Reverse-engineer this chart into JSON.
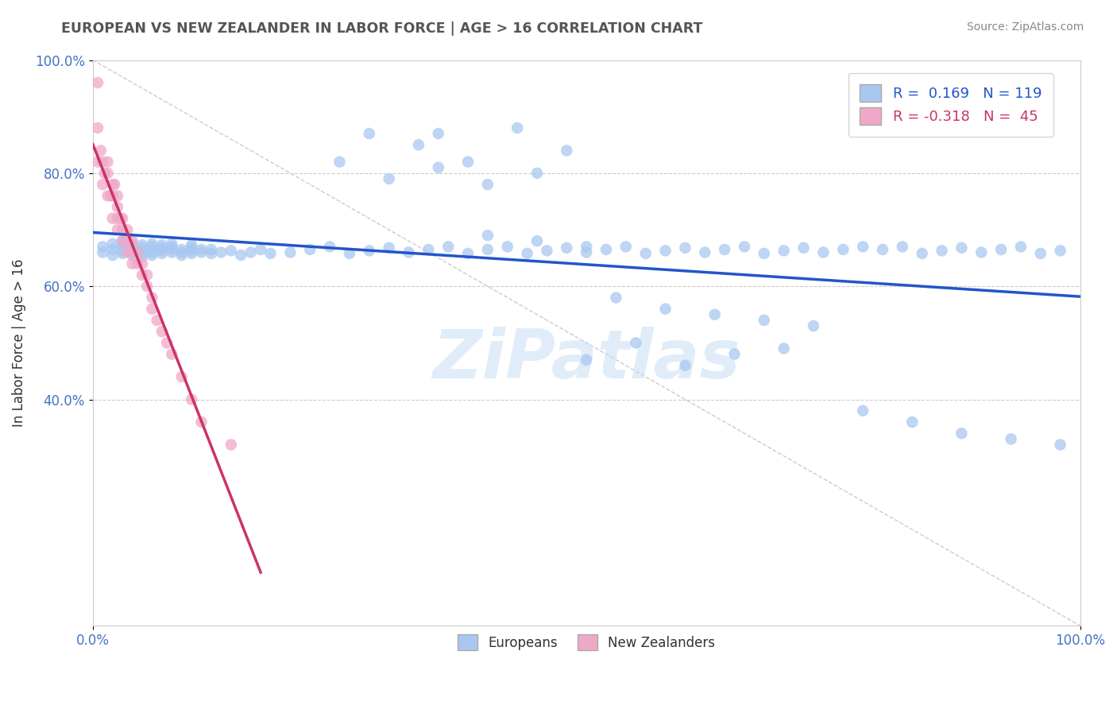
{
  "title": "EUROPEAN VS NEW ZEALANDER IN LABOR FORCE | AGE > 16 CORRELATION CHART",
  "source": "Source: ZipAtlas.com",
  "ylabel": "In Labor Force | Age > 16",
  "R_blue": 0.169,
  "N_blue": 119,
  "R_pink": -0.318,
  "N_pink": 45,
  "blue_color": "#a8c8f0",
  "pink_color": "#f0a8c8",
  "blue_line_color": "#2255cc",
  "pink_line_color": "#cc3366",
  "legend_blue_label": "Europeans",
  "legend_pink_label": "New Zealanders",
  "blue_scatter_x": [
    0.01,
    0.01,
    0.02,
    0.02,
    0.02,
    0.03,
    0.03,
    0.03,
    0.03,
    0.03,
    0.04,
    0.04,
    0.04,
    0.04,
    0.04,
    0.05,
    0.05,
    0.05,
    0.05,
    0.05,
    0.06,
    0.06,
    0.06,
    0.06,
    0.06,
    0.07,
    0.07,
    0.07,
    0.07,
    0.08,
    0.08,
    0.08,
    0.08,
    0.09,
    0.09,
    0.09,
    0.1,
    0.1,
    0.1,
    0.1,
    0.11,
    0.11,
    0.12,
    0.12,
    0.13,
    0.14,
    0.15,
    0.16,
    0.17,
    0.18,
    0.2,
    0.22,
    0.24,
    0.26,
    0.28,
    0.3,
    0.32,
    0.34,
    0.36,
    0.38,
    0.4,
    0.42,
    0.44,
    0.46,
    0.48,
    0.5,
    0.52,
    0.54,
    0.56,
    0.58,
    0.6,
    0.62,
    0.64,
    0.66,
    0.68,
    0.7,
    0.72,
    0.74,
    0.76,
    0.78,
    0.8,
    0.82,
    0.84,
    0.86,
    0.88,
    0.9,
    0.92,
    0.94,
    0.96,
    0.98,
    0.25,
    0.3,
    0.35,
    0.4,
    0.45,
    0.5,
    0.55,
    0.6,
    0.65,
    0.7,
    0.28,
    0.33,
    0.38,
    0.43,
    0.48,
    0.53,
    0.58,
    0.63,
    0.68,
    0.73,
    0.78,
    0.83,
    0.88,
    0.93,
    0.98,
    0.35,
    0.4,
    0.45,
    0.5
  ],
  "blue_scatter_y": [
    0.66,
    0.67,
    0.655,
    0.665,
    0.675,
    0.658,
    0.662,
    0.668,
    0.672,
    0.68,
    0.655,
    0.66,
    0.665,
    0.67,
    0.675,
    0.652,
    0.658,
    0.663,
    0.668,
    0.673,
    0.655,
    0.66,
    0.665,
    0.67,
    0.675,
    0.658,
    0.663,
    0.668,
    0.673,
    0.66,
    0.665,
    0.67,
    0.675,
    0.655,
    0.66,
    0.665,
    0.658,
    0.663,
    0.668,
    0.673,
    0.66,
    0.665,
    0.658,
    0.665,
    0.66,
    0.663,
    0.655,
    0.66,
    0.665,
    0.658,
    0.66,
    0.665,
    0.67,
    0.658,
    0.663,
    0.668,
    0.66,
    0.665,
    0.67,
    0.658,
    0.665,
    0.67,
    0.658,
    0.663,
    0.668,
    0.66,
    0.665,
    0.67,
    0.658,
    0.663,
    0.668,
    0.66,
    0.665,
    0.67,
    0.658,
    0.663,
    0.668,
    0.66,
    0.665,
    0.67,
    0.665,
    0.67,
    0.658,
    0.663,
    0.668,
    0.66,
    0.665,
    0.67,
    0.658,
    0.663,
    0.82,
    0.79,
    0.81,
    0.78,
    0.8,
    0.47,
    0.5,
    0.46,
    0.48,
    0.49,
    0.87,
    0.85,
    0.82,
    0.88,
    0.84,
    0.58,
    0.56,
    0.55,
    0.54,
    0.53,
    0.38,
    0.36,
    0.34,
    0.33,
    0.32,
    0.87,
    0.69,
    0.68,
    0.67
  ],
  "pink_scatter_x": [
    0.005,
    0.005,
    0.005,
    0.008,
    0.01,
    0.01,
    0.012,
    0.015,
    0.015,
    0.015,
    0.018,
    0.02,
    0.02,
    0.02,
    0.022,
    0.025,
    0.025,
    0.025,
    0.025,
    0.028,
    0.03,
    0.03,
    0.03,
    0.035,
    0.035,
    0.035,
    0.04,
    0.04,
    0.04,
    0.045,
    0.045,
    0.05,
    0.05,
    0.055,
    0.055,
    0.06,
    0.06,
    0.065,
    0.07,
    0.075,
    0.08,
    0.09,
    0.1,
    0.11,
    0.14
  ],
  "pink_scatter_y": [
    0.96,
    0.88,
    0.82,
    0.84,
    0.78,
    0.82,
    0.8,
    0.8,
    0.76,
    0.82,
    0.76,
    0.78,
    0.72,
    0.76,
    0.78,
    0.76,
    0.72,
    0.7,
    0.74,
    0.72,
    0.72,
    0.68,
    0.7,
    0.68,
    0.66,
    0.7,
    0.66,
    0.64,
    0.68,
    0.64,
    0.66,
    0.62,
    0.64,
    0.6,
    0.62,
    0.58,
    0.56,
    0.54,
    0.52,
    0.5,
    0.48,
    0.44,
    0.4,
    0.36,
    0.32
  ]
}
